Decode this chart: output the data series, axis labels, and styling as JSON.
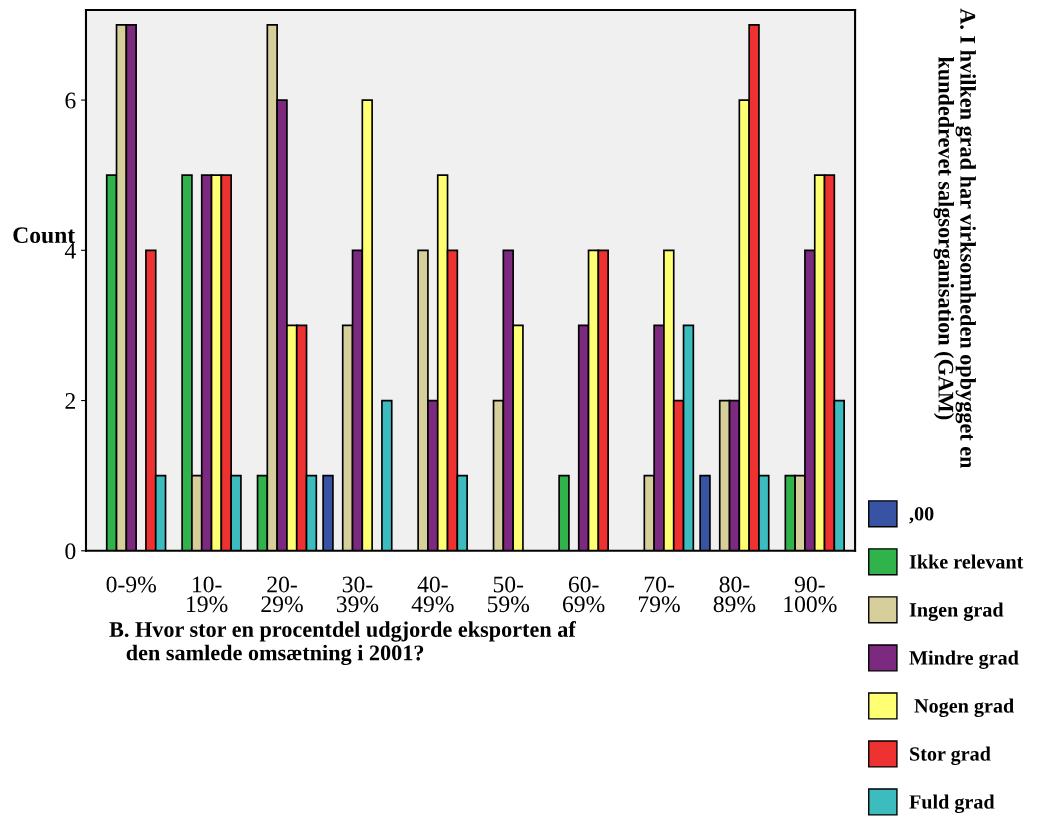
{
  "chart_data": {
    "type": "bar",
    "xlabel": "B. Hvor stor en procentdel udgjorde eksporten af\n   den samlede omsætning i 2001?",
    "ylabel": "Count",
    "legend_title": "A. I hvilken grad har virksomheden opbygget en\nkundedrevet salgsorganisation (GAM)",
    "categories": [
      "0-9%",
      "10-\n19%",
      "20-\n29%",
      "30-\n39%",
      "40-\n49%",
      "50-\n59%",
      "60-\n69%",
      "70-\n79%",
      "80-\n89%",
      "90-\n100%"
    ],
    "series": [
      {
        "name": ",00",
        "color": "#3953a4",
        "values": [
          null,
          null,
          null,
          1,
          null,
          null,
          null,
          null,
          1,
          null
        ]
      },
      {
        "name": "Ikke relevant",
        "color": "#2fb34a",
        "values": [
          5,
          5,
          1,
          null,
          null,
          null,
          1,
          null,
          null,
          1
        ]
      },
      {
        "name": "Ingen grad",
        "color": "#d6cf9b",
        "values": [
          7,
          1,
          7,
          3,
          4,
          2,
          null,
          1,
          2,
          1
        ]
      },
      {
        "name": "Mindre grad",
        "color": "#7b2a7f",
        "values": [
          7,
          5,
          6,
          4,
          2,
          4,
          3,
          3,
          2,
          4
        ]
      },
      {
        "name": " Nogen grad",
        "color": "#ffff73",
        "values": [
          null,
          5,
          3,
          6,
          5,
          3,
          4,
          4,
          6,
          5
        ]
      },
      {
        "name": "Stor grad",
        "color": "#ee3232",
        "values": [
          4,
          5,
          3,
          null,
          4,
          null,
          4,
          2,
          7,
          5
        ]
      },
      {
        "name": "Fuld grad",
        "color": "#3cbcbf",
        "values": [
          1,
          1,
          1,
          2,
          1,
          null,
          null,
          3,
          1,
          2
        ]
      }
    ],
    "ylim": [
      0,
      7.2
    ],
    "yticks": [
      0,
      2,
      4,
      6
    ],
    "grid": false,
    "legend": "right"
  }
}
